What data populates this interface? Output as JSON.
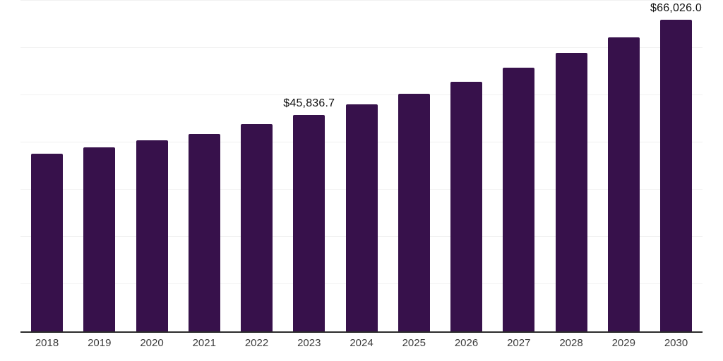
{
  "chart_data": {
    "type": "bar",
    "title": "",
    "xlabel": "",
    "ylabel": "",
    "categories": [
      "2018",
      "2019",
      "2020",
      "2021",
      "2022",
      "2023",
      "2024",
      "2025",
      "2026",
      "2027",
      "2028",
      "2029",
      "2030"
    ],
    "values": [
      37550,
      38900,
      40400,
      41750,
      43850,
      45836.7,
      48130,
      50370,
      52840,
      55780,
      58910,
      62230,
      66026.0
    ],
    "value_labels": {
      "2023": "$45,836.7",
      "2030": "$66,026.0"
    },
    "ylim": [
      0,
      70000
    ],
    "gridline_step": 10000,
    "grid": "horizontal-only",
    "legend_position": "none",
    "y_tick_labels_visible": false,
    "colors": {
      "bar": "#37114B",
      "gridline": "#f1f1f1",
      "axis_line": "#2b2b2b",
      "value_label_text": "#111111",
      "x_tick_text": "#3d3d3d",
      "background": "#ffffff"
    }
  }
}
